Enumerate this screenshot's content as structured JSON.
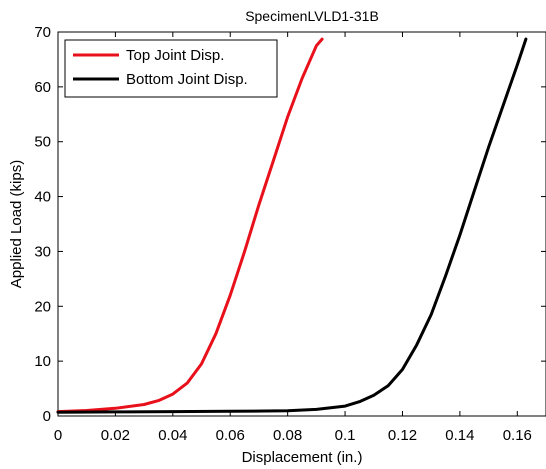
{
  "chart_data": {
    "type": "line",
    "title": "SpecimenLVLD1-31B",
    "xlabel": "Displacement (in.)",
    "ylabel": "Applied Load (kips)",
    "xlim": [
      0,
      0.17
    ],
    "ylim": [
      0,
      70
    ],
    "xticks": [
      0,
      0.02,
      0.04,
      0.06,
      0.08,
      0.1,
      0.12,
      0.14,
      0.16
    ],
    "xtick_labels": [
      "0",
      "0.02",
      "0.04",
      "0.06",
      "0.08",
      "0.1",
      "0.12",
      "0.14",
      "0.16"
    ],
    "yticks": [
      0,
      10,
      20,
      30,
      40,
      50,
      60,
      70
    ],
    "ytick_labels": [
      "0",
      "10",
      "20",
      "30",
      "40",
      "50",
      "60",
      "70"
    ],
    "grid": false,
    "legend_position": "top-left",
    "series": [
      {
        "name": "Top Joint Disp.",
        "color": "#e8101a",
        "x": [
          0.0,
          0.01,
          0.02,
          0.03,
          0.035,
          0.04,
          0.045,
          0.05,
          0.055,
          0.06,
          0.065,
          0.07,
          0.075,
          0.08,
          0.085,
          0.09,
          0.092
        ],
        "y": [
          0.8,
          1.0,
          1.4,
          2.1,
          2.8,
          4.0,
          6.0,
          9.5,
          15.0,
          22.0,
          30.0,
          38.5,
          46.5,
          54.5,
          61.5,
          67.5,
          68.7
        ]
      },
      {
        "name": "Bottom Joint Disp.",
        "color": "#000000",
        "x": [
          0.0,
          0.02,
          0.04,
          0.06,
          0.08,
          0.09,
          0.1,
          0.105,
          0.11,
          0.115,
          0.12,
          0.125,
          0.13,
          0.135,
          0.14,
          0.145,
          0.15,
          0.155,
          0.16,
          0.163
        ],
        "y": [
          0.7,
          0.75,
          0.8,
          0.85,
          0.95,
          1.2,
          1.8,
          2.6,
          3.8,
          5.5,
          8.5,
          13.0,
          18.5,
          25.5,
          33.0,
          41.0,
          49.0,
          56.5,
          64.0,
          68.7
        ]
      }
    ]
  }
}
